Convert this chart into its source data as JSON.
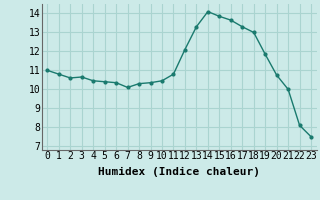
{
  "x": [
    0,
    1,
    2,
    3,
    4,
    5,
    6,
    7,
    8,
    9,
    10,
    11,
    12,
    13,
    14,
    15,
    16,
    17,
    18,
    19,
    20,
    21,
    22,
    23
  ],
  "y": [
    11.0,
    10.8,
    10.6,
    10.65,
    10.45,
    10.4,
    10.35,
    10.1,
    10.3,
    10.35,
    10.45,
    10.8,
    12.1,
    13.3,
    14.1,
    13.85,
    13.65,
    13.3,
    13.0,
    11.85,
    10.75,
    10.0,
    8.1,
    7.5
  ],
  "line_color": "#1a7a6e",
  "marker": "o",
  "marker_size": 2.0,
  "bg_color": "#cceae8",
  "grid_color": "#aad4d0",
  "xlabel": "Humidex (Indice chaleur)",
  "ylim": [
    6.8,
    14.5
  ],
  "xlim": [
    -0.5,
    23.5
  ],
  "yticks": [
    7,
    8,
    9,
    10,
    11,
    12,
    13,
    14
  ],
  "xticks": [
    0,
    1,
    2,
    3,
    4,
    5,
    6,
    7,
    8,
    9,
    10,
    11,
    12,
    13,
    14,
    15,
    16,
    17,
    18,
    19,
    20,
    21,
    22,
    23
  ],
  "tick_fontsize": 7,
  "xlabel_fontsize": 8
}
